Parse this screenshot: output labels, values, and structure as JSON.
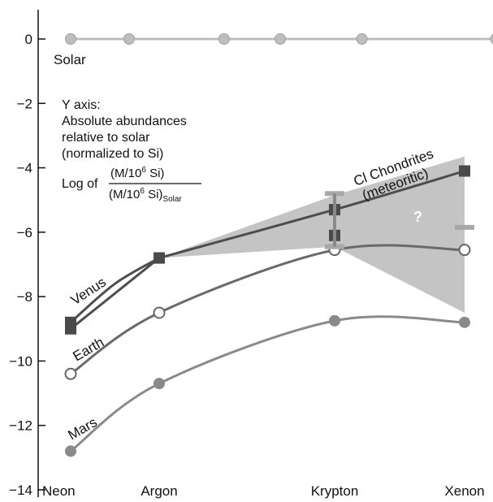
{
  "chart_data": {
    "type": "line",
    "categories": [
      "Neon",
      "Argon",
      "Krypton",
      "Xenon"
    ],
    "ylim": [
      -14,
      0.6
    ],
    "yticks": [
      0,
      -2,
      -4,
      -6,
      -8,
      -10,
      -12,
      -14
    ],
    "ytick_labels": [
      "0",
      "−2",
      "−4",
      "−6",
      "−8",
      "−10",
      "−12",
      "−14"
    ],
    "grid": false,
    "annotation": {
      "lines": [
        "Y axis:",
        "Absolute abundances",
        "relative to solar",
        "(normalized to Si)"
      ],
      "log_prefix": "Log of",
      "frac_num": "(M/10",
      "frac_num_sup": "6",
      "frac_num_end": " Si)",
      "frac_den": "(M/10",
      "frac_den_sup": "6",
      "frac_den_end": " Si)",
      "frac_den_sub": "Solar"
    },
    "question_mark": "?",
    "series": [
      {
        "name": "Solar",
        "x": [
          0,
          0.66,
          1.37,
          1.69,
          2.21,
          3.24
        ],
        "values": [
          0,
          0,
          0,
          0,
          0,
          0
        ],
        "color": "#bdbdbd",
        "marker": "circle"
      },
      {
        "name": "Venus",
        "x": [
          0,
          1
        ],
        "values": [
          -9.0,
          -6.8
        ],
        "color": "#4d4d4d",
        "marker": "square"
      },
      {
        "name": "Earth",
        "x": [
          0,
          1,
          2,
          3
        ],
        "values": [
          -10.4,
          -8.5,
          -6.55,
          -6.55
        ],
        "color": "#6a6a6a",
        "marker": "open-circle"
      },
      {
        "name": "Mars",
        "x": [
          0,
          1,
          2,
          3
        ],
        "values": [
          -12.8,
          -10.7,
          -8.75,
          -8.8
        ],
        "color": "#8a8a8a",
        "marker": "circle"
      },
      {
        "name": "Cl Chondrites\n(meteoritic)",
        "x": [
          1,
          2,
          3
        ],
        "values": [
          -6.8,
          -5.3,
          -4.1
        ],
        "color": "#4d4d4d",
        "marker": "square"
      }
    ],
    "extra_points": [
      {
        "x": 0,
        "value": -8.8,
        "marker": "square"
      },
      {
        "x": 2,
        "value": -6.1,
        "marker": "square"
      },
      {
        "x": 2,
        "value": -6.45,
        "marker": "bar-tick"
      },
      {
        "x": 2,
        "value": -4.8,
        "marker": "bar-tick"
      },
      {
        "x": 3,
        "value": -5.85,
        "marker": "bar-tick"
      }
    ],
    "shaded_region": {
      "upper": [
        [
          1,
          -6.8
        ],
        [
          2,
          -4.85
        ],
        [
          3,
          -3.65
        ]
      ],
      "lower": [
        [
          3,
          -8.5
        ],
        [
          2,
          -6.45
        ],
        [
          1,
          -6.8
        ]
      ]
    }
  }
}
